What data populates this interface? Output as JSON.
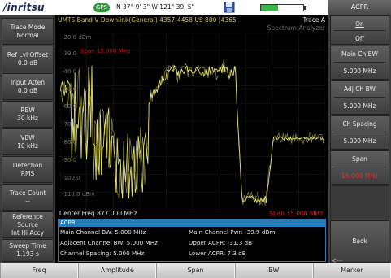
{
  "topbar": {
    "logo": "/inritsu",
    "gps_badge": "GPS",
    "gps_coords": "N 37° 9' 3\" W 121° 39' 5\"",
    "battery_level_pct": 40
  },
  "display": {
    "header": "UMTS Band V Downlink(General) 4357-4458 US 800 (4365",
    "trace_label": "Trace A",
    "mode_label": "Spectrum Analyzer",
    "y_labels": [
      "-20.0 dBm",
      "-30.0",
      "-40.0",
      "-50.0",
      "-60.0",
      "-70.0",
      "-80.0",
      "-90.0",
      "-100.0",
      "-110.0 dBm"
    ],
    "span_overlay": "Span 15.000 MHz",
    "center_freq": "Center Freq 877.000 MHz",
    "span_bottom": "Span 15.000 MHz"
  },
  "acpr": {
    "title": "ACPR",
    "main_bw": "Main Channel BW: 5.000 MHz",
    "adj_bw": "Adjacent Channel BW: 5.000 MHz",
    "spacing": "Channel Spacing: 5.000 MHz",
    "main_pwr": "Main Channel Pwr: -39.9 dBm",
    "upper": "Upper ACPR: -31.3 dB",
    "lower": "Lower ACPR: 7.3 dB"
  },
  "left_keys": [
    {
      "title": "Trace Mode",
      "value": "Normal"
    },
    {
      "title": "Ref Lvl Offset",
      "value": "0.0 dB"
    },
    {
      "title": "Input Atten",
      "value": "0.0 dB"
    },
    {
      "title": "RBW",
      "value": "30 kHz"
    },
    {
      "title": "VBW",
      "value": "10 kHz"
    },
    {
      "title": "Detection",
      "value": "RMS"
    },
    {
      "title": "Trace Count",
      "value": "--"
    },
    {
      "title": "Reference Source",
      "value": "Int Hi Accy"
    },
    {
      "title": "Sweep Time",
      "value": "1.193 s"
    }
  ],
  "right_panel": {
    "title": "ACPR",
    "on_label": "On",
    "off_label": "Off",
    "main_ch_bw_label": "Main Ch BW",
    "main_ch_bw_value": "5.000 MHz",
    "adj_ch_bw_label": "Adj Ch BW",
    "adj_ch_bw_value": "5.000 MHz",
    "ch_spacing_label": "Ch Spacing",
    "ch_spacing_value": "5.000 MHz",
    "span_label": "Span",
    "span_value": "15.000 MHz",
    "back_label": "Back",
    "back_dash": "<---"
  },
  "bottom_tabs": [
    "Freq",
    "Amplitude",
    "Span",
    "BW",
    "Marker"
  ],
  "colors": {
    "trace": "#e4e06a",
    "accent_red": "#e23030",
    "acpr_blue": "#2a7bb5",
    "gps_green": "#2e9b3a"
  }
}
